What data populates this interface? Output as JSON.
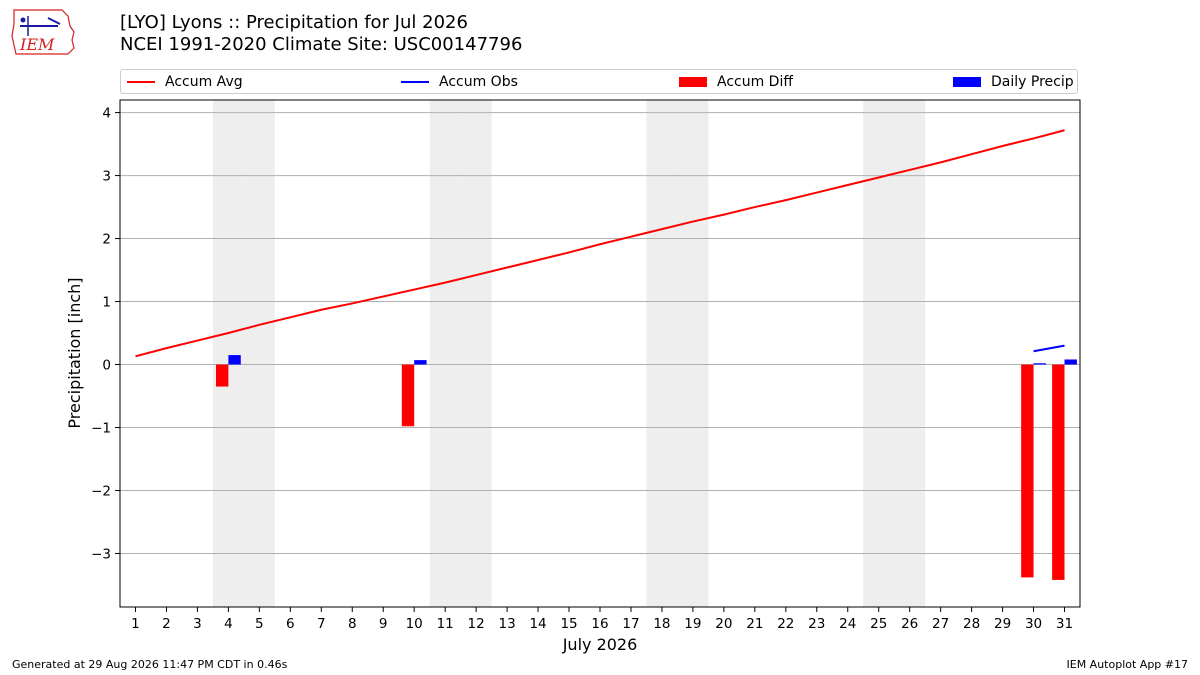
{
  "header": {
    "title_line1": "[LYO] Lyons :: Precipitation for Jul 2026",
    "title_line2": "NCEI 1991-2020 Climate Site: USC00147796"
  },
  "logo": {
    "text": "IEM",
    "color": "#d62020"
  },
  "legend": {
    "accum_avg": "Accum Avg",
    "accum_obs": "Accum Obs",
    "accum_diff": "Accum Diff",
    "daily_precip": "Daily Precip"
  },
  "colors": {
    "accum_avg": "#ff0000",
    "accum_obs": "#0000ff",
    "accum_diff": "#ff0000",
    "daily_precip": "#0000ff",
    "weekend_shade": "#eeeeee",
    "grid": "#b0b0b0"
  },
  "footer": {
    "generated": "Generated at 29 Aug 2026 11:47 PM CDT in 0.46s",
    "app": "IEM Autoplot App #17"
  },
  "chart_data": {
    "type": "bar",
    "xlabel": "July 2026",
    "ylabel": "Precipitation [inch]",
    "x": [
      1,
      2,
      3,
      4,
      5,
      6,
      7,
      8,
      9,
      10,
      11,
      12,
      13,
      14,
      15,
      16,
      17,
      18,
      19,
      20,
      21,
      22,
      23,
      24,
      25,
      26,
      27,
      28,
      29,
      30,
      31
    ],
    "xlim": [
      0.5,
      31.5
    ],
    "ylim": [
      -3.85,
      4.2
    ],
    "yticks": [
      -3,
      -2,
      -1,
      0,
      1,
      2,
      3,
      4
    ],
    "ytick_labels": [
      "−3",
      "−2",
      "−1",
      "0",
      "1",
      "2",
      "3",
      "4"
    ],
    "grid": true,
    "legend_position": "top",
    "weekend_days": [
      4,
      5,
      11,
      12,
      18,
      19,
      25,
      26
    ],
    "series": [
      {
        "name": "Accum Avg",
        "kind": "line",
        "x": [
          1,
          2,
          3,
          4,
          5,
          6,
          7,
          8,
          9,
          10,
          11,
          12,
          13,
          14,
          15,
          16,
          17,
          18,
          19,
          20,
          21,
          22,
          23,
          24,
          25,
          26,
          27,
          28,
          29,
          30,
          31
        ],
        "values": [
          0.13,
          0.26,
          0.38,
          0.5,
          0.63,
          0.75,
          0.87,
          0.97,
          1.08,
          1.19,
          1.3,
          1.42,
          1.54,
          1.66,
          1.78,
          1.91,
          2.03,
          2.15,
          2.27,
          2.38,
          2.5,
          2.61,
          2.73,
          2.85,
          2.97,
          3.09,
          3.21,
          3.34,
          3.47,
          3.59,
          3.72
        ]
      },
      {
        "name": "Accum Obs",
        "kind": "line",
        "x": [
          30,
          31
        ],
        "values": [
          0.21,
          0.3
        ]
      },
      {
        "name": "Accum Diff",
        "kind": "bar",
        "x": [
          4,
          10,
          30,
          31
        ],
        "values": [
          -0.35,
          -0.98,
          -3.38,
          -3.42
        ]
      },
      {
        "name": "Daily Precip",
        "kind": "bar",
        "x": [
          4,
          10,
          30,
          31
        ],
        "values": [
          0.15,
          0.07,
          0.02,
          0.08
        ]
      }
    ]
  }
}
